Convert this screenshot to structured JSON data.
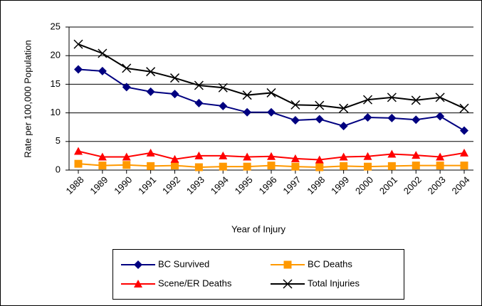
{
  "chart_data": {
    "type": "line",
    "y_label": "Rate per 100,000 Population",
    "x_label": "Year of Injury",
    "categories": [
      "1988",
      "1989",
      "1990",
      "1991",
      "1992",
      "1993",
      "1994",
      "1995",
      "1996",
      "1997",
      "1998",
      "1999",
      "2000",
      "2001",
      "2002",
      "2003",
      "2004"
    ],
    "series": [
      {
        "name": "BC Survived",
        "color": "#000080",
        "marker": "diamond",
        "values": [
          17.6,
          17.3,
          14.5,
          13.7,
          13.3,
          11.7,
          11.2,
          10.1,
          10.1,
          8.7,
          8.9,
          7.7,
          9.2,
          9.1,
          8.8,
          9.4,
          6.9
        ]
      },
      {
        "name": "BC Deaths",
        "color": "#FF9900",
        "marker": "square",
        "values": [
          1.1,
          0.8,
          0.9,
          0.7,
          0.8,
          0.5,
          0.6,
          0.6,
          0.8,
          0.6,
          0.5,
          0.7,
          0.6,
          0.7,
          0.8,
          0.8,
          0.8
        ]
      },
      {
        "name": "Scene/ER Deaths",
        "color": "#FF0000",
        "marker": "triangle",
        "values": [
          3.3,
          2.3,
          2.3,
          3.0,
          1.9,
          2.5,
          2.5,
          2.3,
          2.4,
          2.0,
          1.8,
          2.3,
          2.4,
          2.8,
          2.6,
          2.3,
          3.0
        ]
      },
      {
        "name": "Total Injuries",
        "color": "#000000",
        "marker": "x",
        "values": [
          22.0,
          20.4,
          17.8,
          17.2,
          16.1,
          14.8,
          14.4,
          13.1,
          13.5,
          11.4,
          11.3,
          10.8,
          12.3,
          12.7,
          12.2,
          12.7,
          10.8
        ]
      }
    ],
    "ylim": [
      0,
      25
    ],
    "yticks": [
      0,
      5,
      10,
      15,
      20,
      25
    ],
    "grid": true
  }
}
